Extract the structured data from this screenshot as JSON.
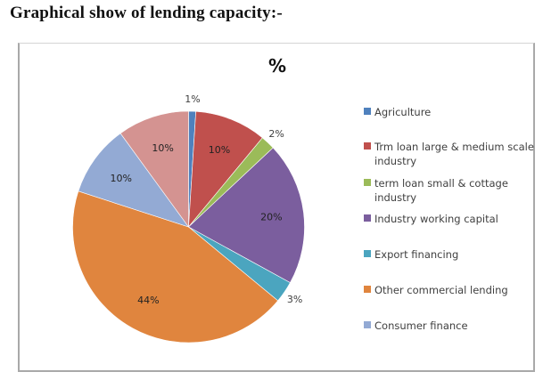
{
  "heading": "Graphical show of lending capacity:-",
  "chart_data": {
    "type": "pie",
    "title": "%",
    "legend_position": "right",
    "slices": [
      {
        "label": "Agriculture",
        "value": 1,
        "display": "1%",
        "color": "#4F81BD",
        "in_legend": true
      },
      {
        "label": "Trm loan large & medium scale industry",
        "legend_lines": [
          "Trm loan large & medium scale",
          "industry"
        ],
        "value": 10,
        "display": "10%",
        "color": "#C0504D",
        "in_legend": true
      },
      {
        "label": "term loan small & cottage industry",
        "legend_lines": [
          "term loan small & cottage",
          "industry"
        ],
        "value": 2,
        "display": "2%",
        "color": "#9BBB59",
        "in_legend": true
      },
      {
        "label": "Industry working capital",
        "value": 20,
        "display": "20%",
        "color": "#7B5E9E",
        "in_legend": true
      },
      {
        "label": "Export financing",
        "value": 3,
        "display": "3%",
        "color": "#4BA5BF",
        "in_legend": true
      },
      {
        "label": "Other commercial lending",
        "value": 44,
        "display": "44%",
        "color": "#E0853E",
        "in_legend": true
      },
      {
        "label": "Consumer finance",
        "value": 10,
        "display": "10%",
        "color": "#93AAD4",
        "in_legend": true
      },
      {
        "label": "",
        "value": 10,
        "display": "10%",
        "color": "#D49391",
        "in_legend": false
      }
    ]
  }
}
